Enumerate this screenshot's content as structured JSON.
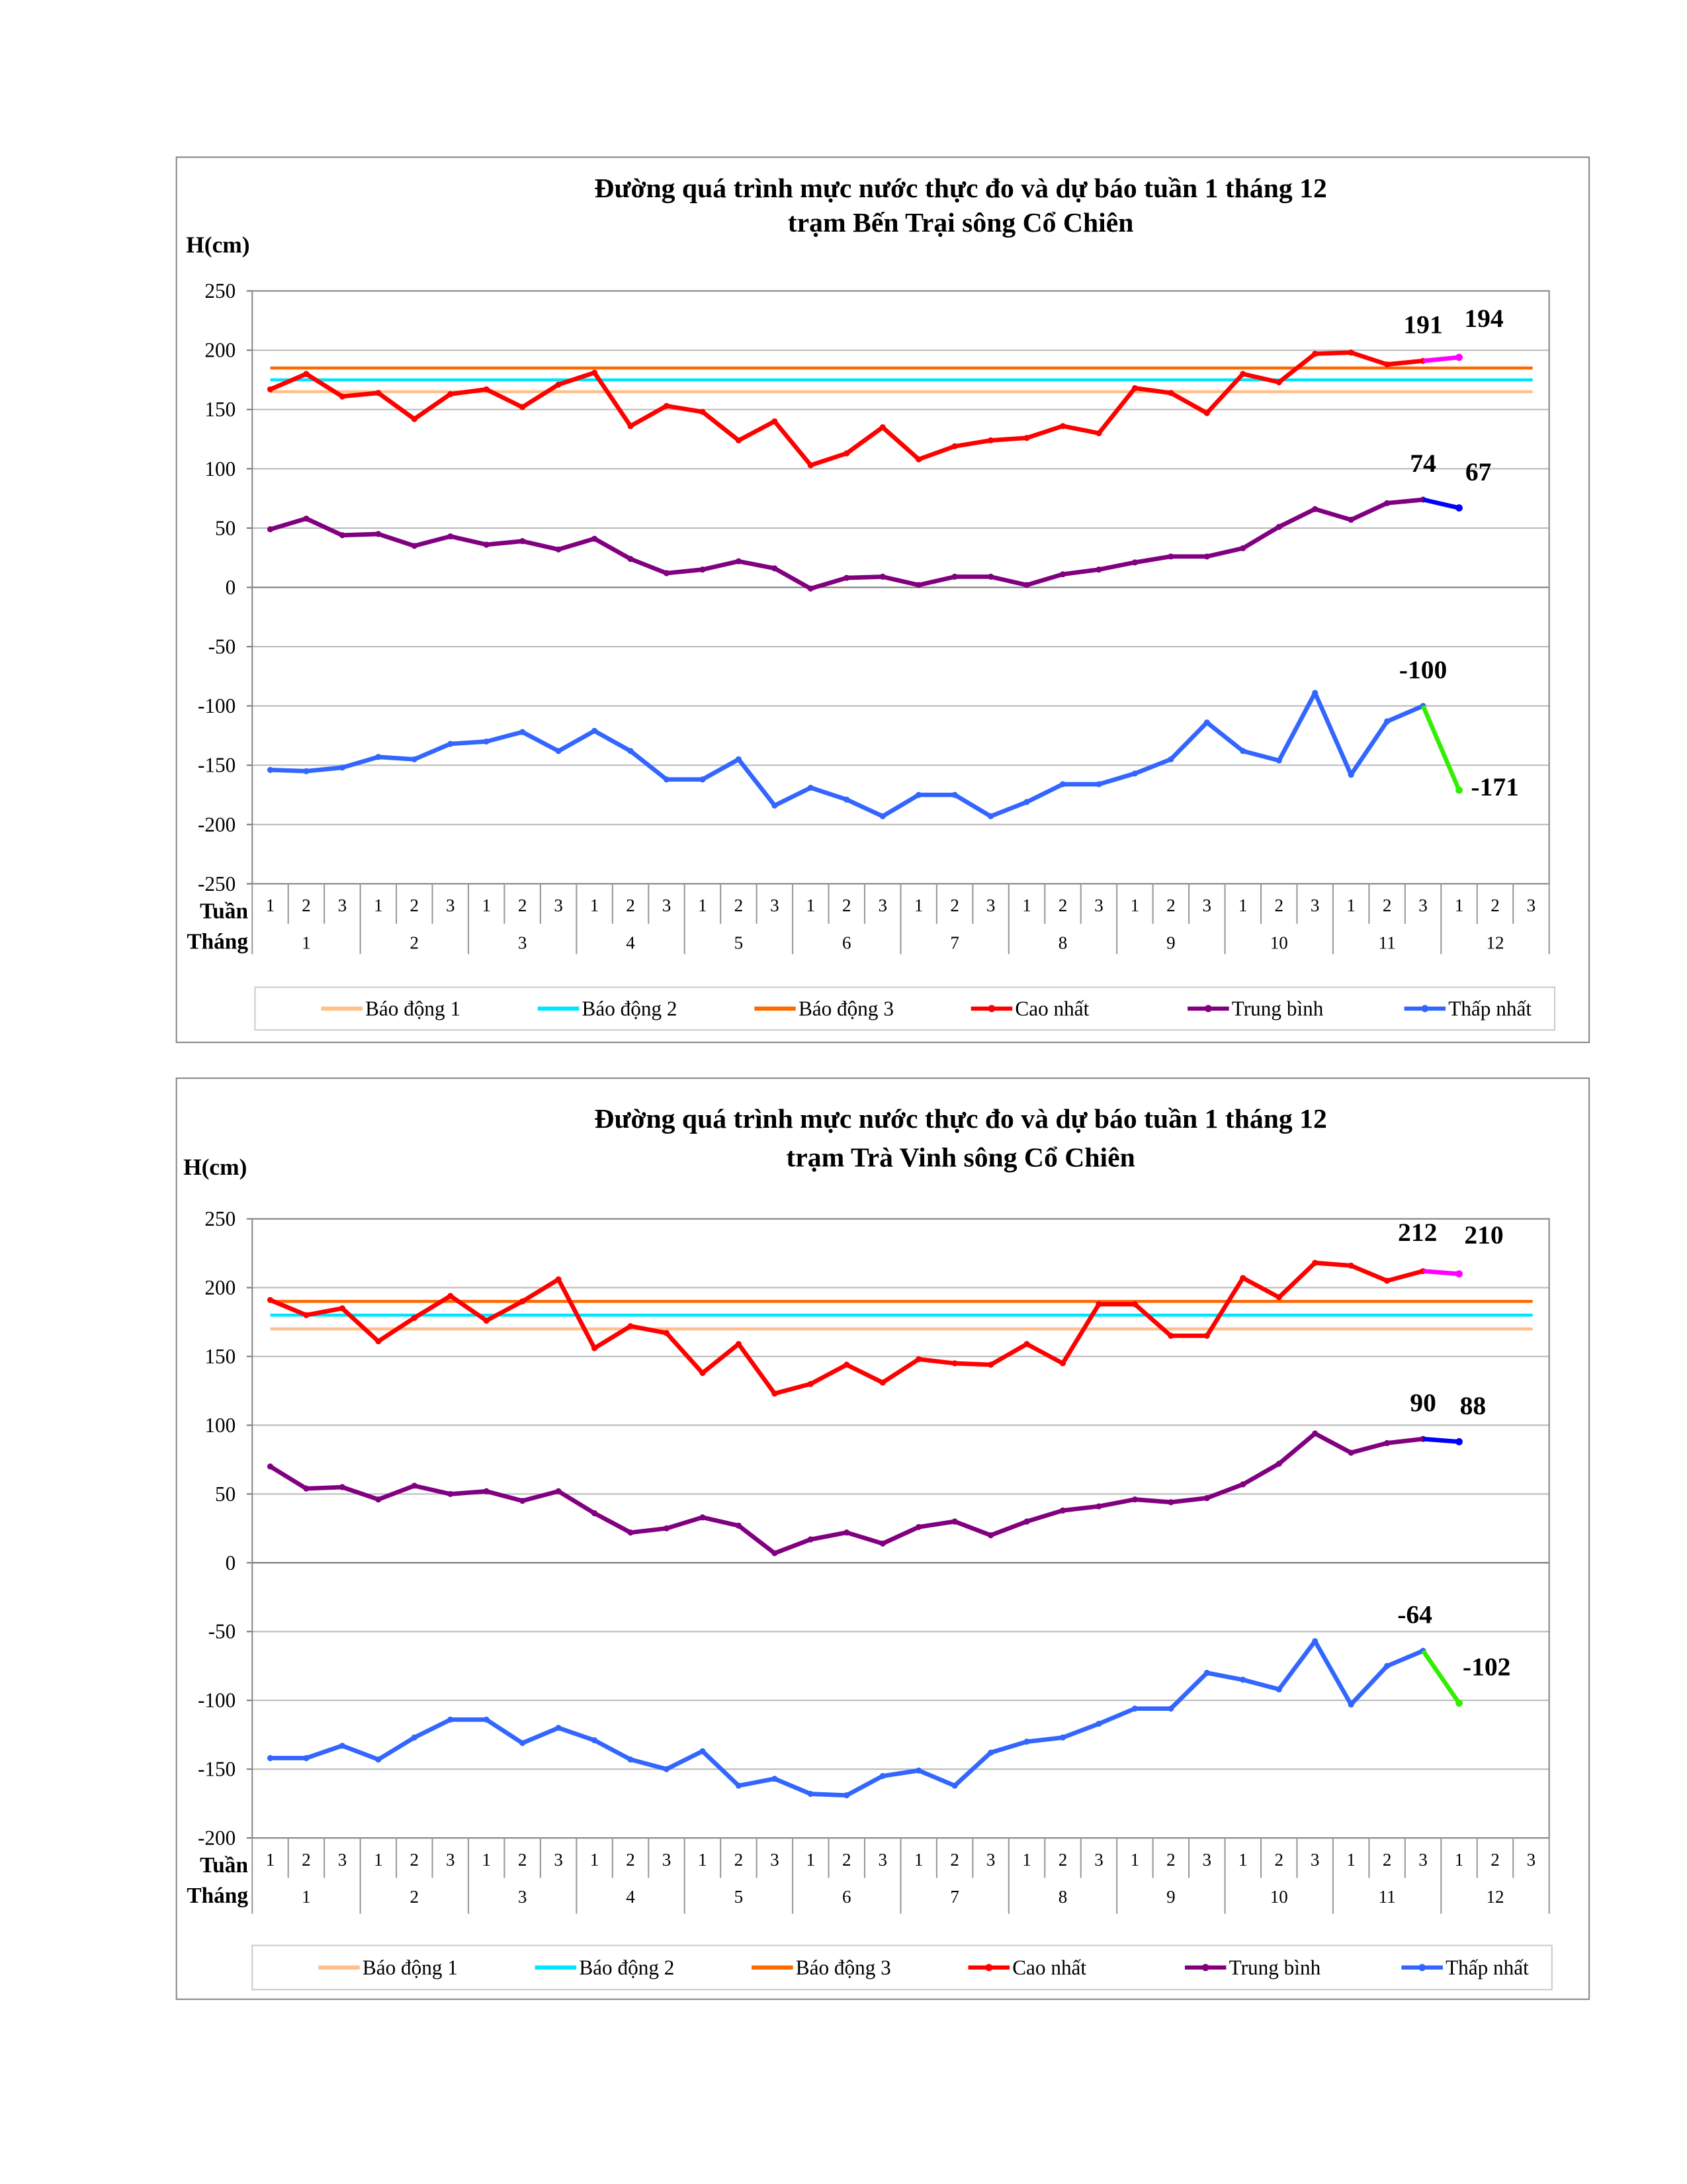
{
  "charts": [
    {
      "type": "line",
      "title": [
        "Đường quá trình mực nước thực đo và dự báo tuần 1 tháng 12",
        "trạm Bến Trại sông Cổ Chiên"
      ],
      "ylabel": "H(cm)",
      "ylim": [
        -250,
        250
      ],
      "yticks": [
        250,
        200,
        150,
        100,
        50,
        0,
        -50,
        -100,
        -150,
        -200,
        -250
      ],
      "x_week_label": "Tuần",
      "x_month_label": "Tháng",
      "weeks": [
        "1",
        "2",
        "3"
      ],
      "months": [
        "1",
        "2",
        "3",
        "4",
        "5",
        "6",
        "7",
        "8",
        "9",
        "10",
        "11",
        "12"
      ],
      "grid": true,
      "legend_position": "bottom",
      "alerts": [
        {
          "name": "Báo động 1",
          "value": 165,
          "color": "#ffc08a"
        },
        {
          "name": "Báo động 2",
          "value": 175,
          "color": "#00e5ff"
        },
        {
          "name": "Báo động 3",
          "value": 185,
          "color": "#ff6a00"
        }
      ],
      "series": [
        {
          "name": "Cao nhất",
          "color": "#ff0000",
          "forecast_color": "#ff00ff",
          "values": [
            167,
            180,
            161,
            164,
            142,
            163,
            167,
            152,
            171,
            181,
            136,
            153,
            148,
            124,
            140,
            103,
            113,
            135,
            108,
            119,
            124,
            126,
            136,
            130,
            168,
            164,
            147,
            180,
            173,
            197,
            198,
            188,
            191
          ],
          "forecast": 194
        },
        {
          "name": "Trung bình",
          "color": "#800080",
          "forecast_color": "#0000ff",
          "values": [
            49,
            58,
            44,
            45,
            35,
            43,
            36,
            39,
            32,
            41,
            24,
            12,
            15,
            22,
            16,
            -1,
            8,
            9,
            2,
            9,
            9,
            2,
            11,
            15,
            21,
            26,
            26,
            33,
            51,
            66,
            57,
            71,
            74
          ],
          "forecast": 67
        },
        {
          "name": "Thấp nhất",
          "color": "#3366ff",
          "forecast_color": "#33ee00",
          "values": [
            -154,
            -155,
            -152,
            -143,
            -145,
            -132,
            -130,
            -122,
            -138,
            -121,
            -138,
            -162,
            -162,
            -145,
            -184,
            -169,
            -179,
            -193,
            -175,
            -175,
            -193,
            -181,
            -166,
            -166,
            -157,
            -145,
            -114,
            -138,
            -146,
            -89,
            -158,
            -113,
            -100
          ],
          "forecast": -171
        }
      ],
      "annotations": [
        "191",
        "194",
        "74",
        "67",
        "-100",
        "-171"
      ]
    },
    {
      "type": "line",
      "title": [
        "Đường quá trình mực nước thực đo và dự báo tuần 1 tháng 12",
        "trạm Trà Vinh sông Cổ Chiên"
      ],
      "ylabel": "H(cm)",
      "ylim": [
        -200,
        250
      ],
      "yticks": [
        250,
        200,
        150,
        100,
        50,
        0,
        -50,
        -100,
        -150,
        -200
      ],
      "x_week_label": "Tuần",
      "x_month_label": "Tháng",
      "weeks": [
        "1",
        "2",
        "3"
      ],
      "months": [
        "1",
        "2",
        "3",
        "4",
        "5",
        "6",
        "7",
        "8",
        "9",
        "10",
        "11",
        "12"
      ],
      "grid": true,
      "legend_position": "bottom",
      "alerts": [
        {
          "name": "Báo động 1",
          "value": 170,
          "color": "#ffc08a"
        },
        {
          "name": "Báo động 2",
          "value": 180,
          "color": "#00e5ff"
        },
        {
          "name": "Báo động 3",
          "value": 190,
          "color": "#ff6a00"
        }
      ],
      "series": [
        {
          "name": "Cao nhất",
          "color": "#ff0000",
          "forecast_color": "#ff00ff",
          "values": [
            191,
            180,
            185,
            161,
            178,
            194,
            176,
            190,
            206,
            156,
            172,
            167,
            138,
            159,
            123,
            130,
            144,
            131,
            148,
            145,
            144,
            159,
            145,
            188,
            188,
            165,
            165,
            207,
            193,
            218,
            216,
            205,
            212
          ],
          "forecast": 210
        },
        {
          "name": "Trung bình",
          "color": "#800080",
          "forecast_color": "#0000ff",
          "values": [
            70,
            54,
            55,
            46,
            56,
            50,
            52,
            45,
            52,
            36,
            22,
            25,
            33,
            27,
            7,
            17,
            22,
            14,
            26,
            30,
            20,
            30,
            38,
            41,
            46,
            44,
            47,
            57,
            72,
            94,
            80,
            87,
            90
          ],
          "forecast": 88
        },
        {
          "name": "Thấp nhất",
          "color": "#3366ff",
          "forecast_color": "#33ee00",
          "values": [
            -142,
            -142,
            -133,
            -143,
            -127,
            -114,
            -114,
            -131,
            -120,
            -129,
            -143,
            -150,
            -137,
            -162,
            -157,
            -168,
            -169,
            -155,
            -151,
            -162,
            -138,
            -130,
            -127,
            -117,
            -106,
            -106,
            -80,
            -85,
            -92,
            -57,
            -103,
            -75,
            -64
          ],
          "forecast": -102
        }
      ],
      "annotations": [
        "212",
        "210",
        "90",
        "88",
        "-64",
        "-102"
      ]
    }
  ]
}
